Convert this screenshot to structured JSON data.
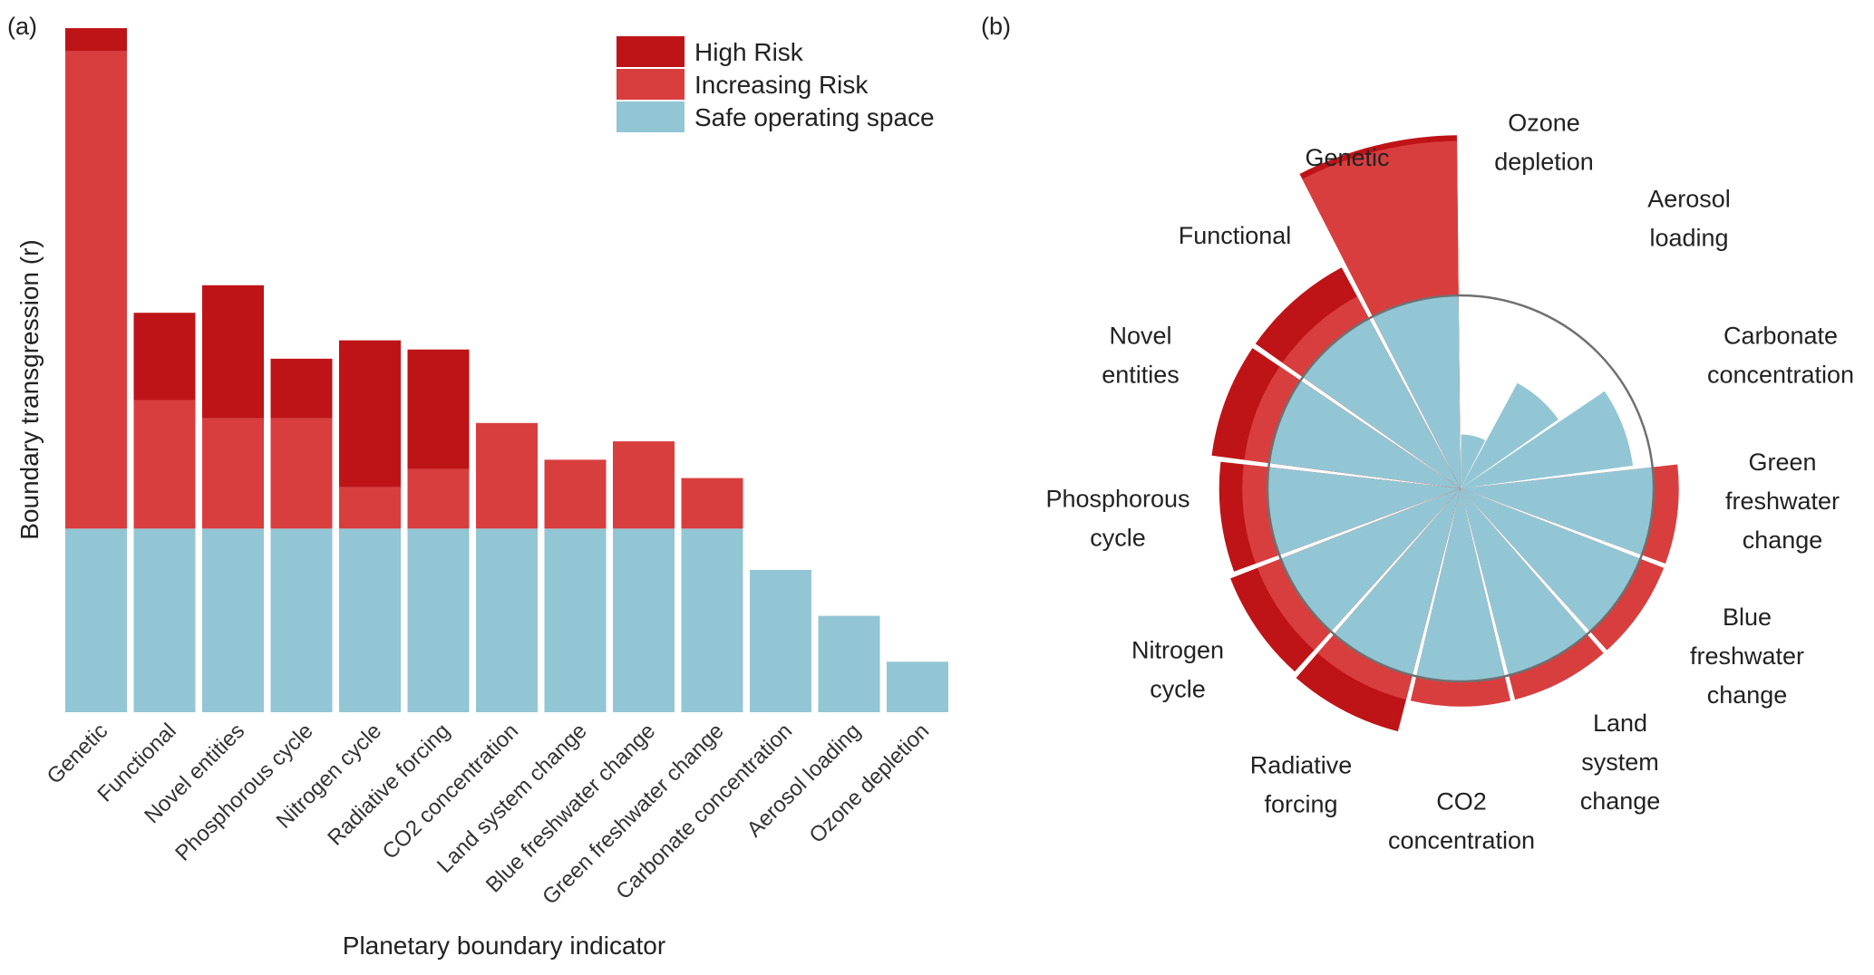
{
  "legend": {
    "items": [
      {
        "key": "high",
        "label": "High Risk",
        "color": "#be1417"
      },
      {
        "key": "increasing",
        "label": "Increasing Risk",
        "color": "#d93e3f"
      },
      {
        "key": "safe",
        "label": "Safe operating space",
        "color": "#93c6d4"
      }
    ]
  },
  "chart_data": [
    {
      "panel": "(a)",
      "type": "bar",
      "stacked": true,
      "xlabel": "Planetary boundary indicator",
      "ylabel": "Boundary transgression (r)",
      "ylim": [
        0,
        1.5
      ],
      "categories": [
        "Genetic",
        "Functional",
        "Novel entities",
        "Phosphorous cycle",
        "Nitrogen cycle",
        "Radiative forcing",
        "CO2 concentration",
        "Land system change",
        "Blue freshwater change",
        "Green freshwater change",
        "Carbonate concentration",
        "Aerosol loading",
        "Ozone depletion"
      ],
      "series": [
        {
          "name": "Safe operating space",
          "key": "safe",
          "values": [
            0.4,
            0.4,
            0.4,
            0.4,
            0.4,
            0.4,
            0.4,
            0.4,
            0.4,
            0.4,
            0.31,
            0.21,
            0.11
          ]
        },
        {
          "name": "Increasing Risk",
          "key": "increasing",
          "values": [
            1.04,
            0.28,
            0.24,
            0.24,
            0.09,
            0.13,
            0.23,
            0.15,
            0.19,
            0.11,
            0,
            0,
            0
          ]
        },
        {
          "name": "High Risk",
          "key": "high",
          "values": [
            0.05,
            0.19,
            0.29,
            0.13,
            0.32,
            0.26,
            0,
            0,
            0,
            0,
            0,
            0,
            0
          ]
        }
      ]
    },
    {
      "panel": "(b)",
      "type": "polar-bar",
      "categories": [
        "Genetic",
        "Ozone depletion",
        "Aerosol loading",
        "Carbonate concentration",
        "Green freshwater change",
        "Blue freshwater change",
        "Land system change",
        "CO2 concentration",
        "Radiative forcing",
        "Nitrogen cycle",
        "Phosphorous cycle",
        "Novel entities",
        "Functional"
      ],
      "display_labels": [
        [
          "Genetic"
        ],
        [
          "Ozone",
          "depletion"
        ],
        [
          "Aerosol",
          "loading"
        ],
        [
          "Carbonate",
          "concentration"
        ],
        [
          "Green",
          "freshwater",
          "change"
        ],
        [
          "Blue",
          "freshwater",
          "change"
        ],
        [
          "Land",
          "system",
          "change"
        ],
        [
          "CO2",
          "concentration"
        ],
        [
          "Radiative",
          "forcing"
        ],
        [
          "Nitrogen",
          "cycle"
        ],
        [
          "Phosphorous",
          "cycle"
        ],
        [
          "Novel",
          "entities"
        ],
        [
          "Functional"
        ]
      ],
      "boundary_radius": 1.0,
      "safe": [
        1.0,
        0.28,
        0.62,
        0.9,
        1.0,
        1.0,
        1.0,
        1.0,
        1.0,
        1.0,
        1.0,
        1.0,
        1.0
      ],
      "increasing_outer": [
        1.8,
        0,
        0,
        0,
        1.13,
        1.13,
        1.13,
        1.13,
        1.13,
        1.13,
        1.13,
        1.13,
        1.13
      ],
      "high_outer": [
        1.83,
        0,
        0,
        0,
        0,
        0,
        0,
        0,
        1.3,
        1.28,
        1.25,
        1.3,
        1.3
      ]
    }
  ]
}
